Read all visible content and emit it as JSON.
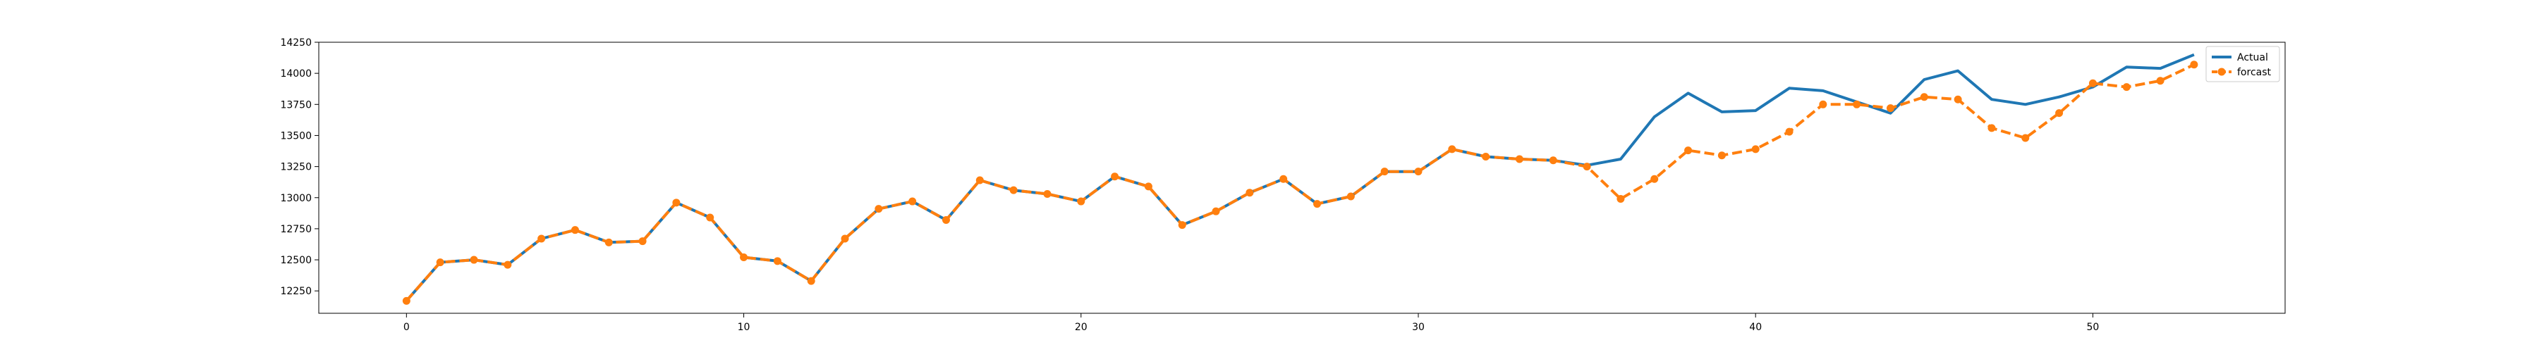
{
  "chart_data": {
    "type": "line",
    "title": "",
    "xlabel": "",
    "ylabel": "",
    "xlim": [
      -2.6,
      55.7
    ],
    "ylim": [
      12070,
      14250
    ],
    "xticks": [
      0,
      10,
      20,
      30,
      40,
      50
    ],
    "yticks": [
      12250,
      12500,
      12750,
      13000,
      13250,
      13500,
      13750,
      14000,
      14250
    ],
    "grid": false,
    "legend_position": "top-right",
    "x": [
      0,
      1,
      2,
      3,
      4,
      5,
      6,
      7,
      8,
      9,
      10,
      11,
      12,
      13,
      14,
      15,
      16,
      17,
      18,
      19,
      20,
      21,
      22,
      23,
      24,
      25,
      26,
      27,
      28,
      29,
      30,
      31,
      32,
      33,
      34,
      35,
      36,
      37,
      38,
      39,
      40,
      41,
      42,
      43,
      44,
      45,
      46,
      47,
      48,
      49,
      50,
      51,
      52,
      53
    ],
    "series": [
      {
        "name": "Actual",
        "color": "#1f77b4",
        "style": "solid",
        "marker": "none",
        "values": [
          12170,
          12480,
          12500,
          12460,
          12670,
          12740,
          12640,
          12650,
          12960,
          12840,
          12520,
          12490,
          12330,
          12670,
          12910,
          12970,
          12820,
          13140,
          13060,
          13030,
          12970,
          13170,
          13090,
          12780,
          12890,
          13040,
          13150,
          12950,
          13010,
          13210,
          13210,
          13390,
          13330,
          13310,
          13300,
          13260,
          13310,
          13650,
          13840,
          13690,
          13700,
          13880,
          13860,
          13770,
          13680,
          13950,
          14020,
          13790,
          13750,
          13810,
          13890,
          14050,
          14040,
          14150
        ]
      },
      {
        "name": "forcast",
        "color": "#ff7f0e",
        "style": "dashed",
        "marker": "circle",
        "values": [
          12170,
          12480,
          12500,
          12460,
          12670,
          12740,
          12640,
          12650,
          12960,
          12840,
          12520,
          12490,
          12330,
          12670,
          12910,
          12970,
          12820,
          13140,
          13060,
          13030,
          12970,
          13170,
          13090,
          12780,
          12890,
          13040,
          13150,
          12950,
          13010,
          13210,
          13210,
          13390,
          13330,
          13310,
          13300,
          13250,
          12990,
          13150,
          13380,
          13340,
          13390,
          13530,
          13750,
          13750,
          13720,
          13810,
          13790,
          13560,
          13480,
          13680,
          13920,
          13890,
          13940,
          14070
        ]
      }
    ]
  }
}
